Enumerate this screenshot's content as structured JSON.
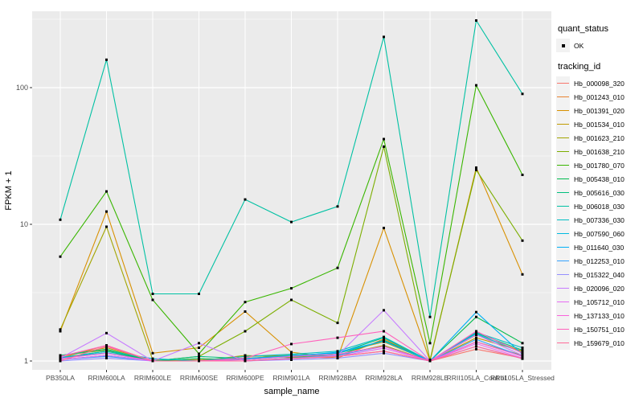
{
  "figure": {
    "background": "#FFFFFF",
    "panel_bg": "#EBEBEB",
    "grid_color": "#FFFFFF",
    "tick_color": "#333333",
    "axis_text_color": "#4D4D4D",
    "point_color": "#000000",
    "legend_key_bg": "#F2F2F2"
  },
  "legend": {
    "quant_title": "quant_status",
    "quant_items": [
      {
        "label": "OK"
      }
    ],
    "tracking_title": "tracking_id"
  },
  "chart_data": {
    "type": "line",
    "title": "",
    "xlabel": "sample_name",
    "ylabel": "FPKM + 1",
    "y_scale": "log10",
    "y_ticks": [
      1,
      10,
      100
    ],
    "ylim": [
      1,
      363
    ],
    "grid": true,
    "legend_position": "right",
    "point_shape": "square",
    "categories": [
      "PB350LA",
      "RRIM600LA",
      "RRIM600LE",
      "RRIM600SE",
      "RRIM600PE",
      "RRIM901LA",
      "RRIM928BA",
      "RRIM928LA",
      "RRIM928LE",
      "RRII105LA_Control",
      "RRII105LA_Stressed"
    ],
    "series": [
      {
        "name": "Hb_000098_320",
        "color": "#F8766D",
        "values": [
          1.02,
          1.1,
          1.0,
          1.0,
          1.0,
          1.05,
          1.08,
          1.18,
          1.0,
          1.22,
          1.05
        ]
      },
      {
        "name": "Hb_001243_010",
        "color": "#EA8331",
        "values": [
          1.05,
          1.3,
          1.0,
          1.02,
          1.05,
          1.08,
          1.05,
          1.45,
          1.0,
          1.55,
          1.18
        ]
      },
      {
        "name": "Hb_001391_020",
        "color": "#D89000",
        "values": [
          1.65,
          12.4,
          1.14,
          1.25,
          2.3,
          1.16,
          1.05,
          9.4,
          1.0,
          26.0,
          4.3
        ]
      },
      {
        "name": "Hb_001534_010",
        "color": "#C09B00",
        "values": [
          1.08,
          1.25,
          1.0,
          1.0,
          1.08,
          1.1,
          1.14,
          1.38,
          1.0,
          1.48,
          1.18
        ]
      },
      {
        "name": "Hb_001623_210",
        "color": "#A3A500",
        "values": [
          1.7,
          9.6,
          1.02,
          1.0,
          1.1,
          1.06,
          1.1,
          1.3,
          1.0,
          1.38,
          1.1
        ]
      },
      {
        "name": "Hb_001638_210",
        "color": "#7CAE00",
        "values": [
          1.1,
          1.2,
          1.0,
          1.08,
          1.65,
          2.8,
          1.9,
          37.0,
          1.02,
          25.0,
          7.6
        ]
      },
      {
        "name": "Hb_001780_070",
        "color": "#39B600",
        "values": [
          5.8,
          17.4,
          2.8,
          1.13,
          2.7,
          3.4,
          4.8,
          42.0,
          1.35,
          104.0,
          23.0
        ]
      },
      {
        "name": "Hb_005438_010",
        "color": "#00BB4E",
        "values": [
          1.05,
          1.18,
          1.0,
          1.04,
          1.02,
          1.08,
          1.1,
          1.42,
          1.0,
          2.1,
          1.35
        ]
      },
      {
        "name": "Hb_005616_030",
        "color": "#00BF7D",
        "values": [
          1.1,
          1.22,
          1.0,
          1.08,
          1.04,
          1.1,
          1.14,
          1.48,
          1.0,
          1.6,
          1.2
        ]
      },
      {
        "name": "Hb_006018_030",
        "color": "#00C1A3",
        "values": [
          10.8,
          160.0,
          3.1,
          3.1,
          15.2,
          10.4,
          13.5,
          235.0,
          2.1,
          310.0,
          90.0
        ]
      },
      {
        "name": "Hb_007336_030",
        "color": "#00BFC4",
        "values": [
          1.06,
          1.18,
          1.04,
          1.0,
          1.08,
          1.12,
          1.18,
          1.5,
          1.0,
          1.62,
          1.25
        ]
      },
      {
        "name": "Hb_007590_060",
        "color": "#00BAE0",
        "values": [
          1.05,
          1.15,
          1.0,
          1.0,
          1.04,
          1.1,
          1.14,
          1.4,
          1.0,
          1.58,
          1.15
        ]
      },
      {
        "name": "Hb_011640_030",
        "color": "#00B0F6",
        "values": [
          1.02,
          1.1,
          1.0,
          1.0,
          1.04,
          1.08,
          1.16,
          1.4,
          1.0,
          2.28,
          1.12
        ]
      },
      {
        "name": "Hb_012253_010",
        "color": "#35A2FF",
        "values": [
          1.02,
          1.08,
          1.0,
          1.0,
          1.0,
          1.05,
          1.1,
          1.28,
          1.0,
          1.44,
          1.08
        ]
      },
      {
        "name": "Hb_015322_040",
        "color": "#9590FF",
        "values": [
          1.0,
          1.05,
          1.0,
          1.0,
          1.0,
          1.02,
          1.05,
          1.14,
          1.0,
          1.28,
          1.04
        ]
      },
      {
        "name": "Hb_020096_020",
        "color": "#C77CFF",
        "values": [
          1.05,
          1.6,
          1.0,
          1.35,
          1.0,
          1.04,
          1.1,
          2.35,
          1.0,
          1.56,
          1.1
        ]
      },
      {
        "name": "Hb_105712_010",
        "color": "#E76BF3",
        "values": [
          1.02,
          1.1,
          1.0,
          1.0,
          1.0,
          1.04,
          1.08,
          1.24,
          1.0,
          1.34,
          1.05
        ]
      },
      {
        "name": "Hb_137133_010",
        "color": "#FA62DB",
        "values": [
          1.04,
          1.14,
          1.0,
          1.0,
          1.02,
          1.08,
          1.12,
          1.28,
          1.0,
          1.38,
          1.08
        ]
      },
      {
        "name": "Hb_150751_010",
        "color": "#FF62BC",
        "values": [
          1.08,
          1.3,
          1.0,
          1.0,
          1.05,
          1.33,
          1.48,
          1.65,
          1.0,
          1.65,
          1.14
        ]
      },
      {
        "name": "Hb_159679_010",
        "color": "#FF6A98",
        "values": [
          1.0,
          1.28,
          1.0,
          1.0,
          1.0,
          1.04,
          1.08,
          1.18,
          1.0,
          1.28,
          1.04
        ]
      }
    ]
  }
}
